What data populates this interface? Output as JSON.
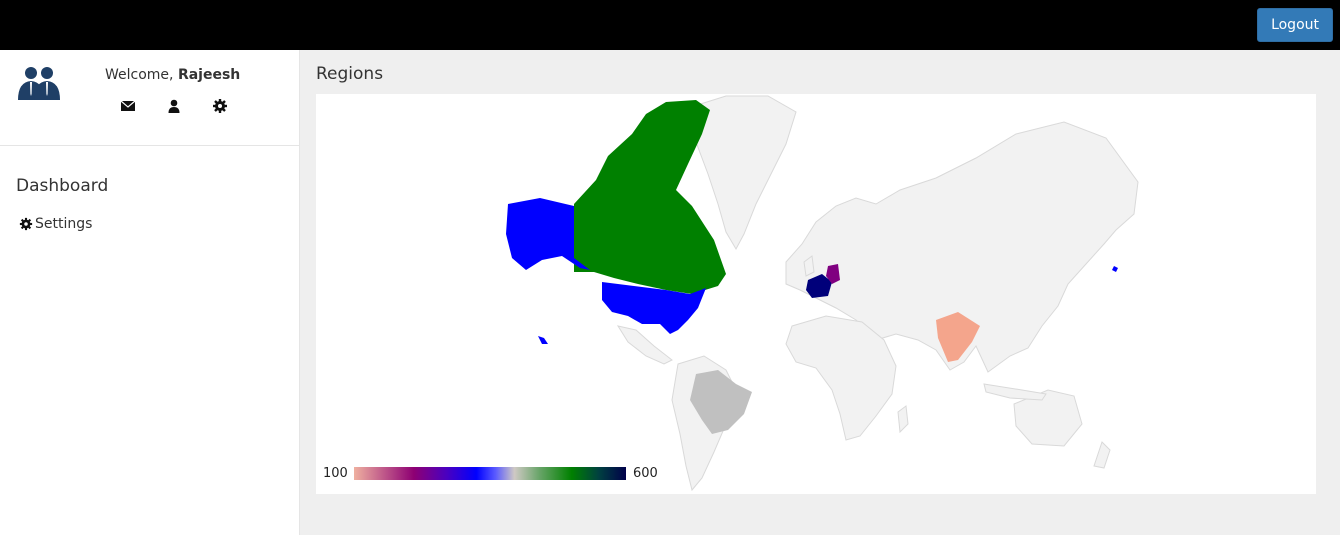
{
  "header": {
    "logout_label": "Logout"
  },
  "user": {
    "welcome_prefix": "Welcome,",
    "name": "Rajeesh"
  },
  "sidebar": {
    "icons": [
      "envelope-icon",
      "user-icon",
      "gear-icon"
    ],
    "nav_title": "Dashboard",
    "items": [
      {
        "label": "Settings",
        "icon": "gear-icon"
      }
    ]
  },
  "main": {
    "title": "Regions"
  },
  "map": {
    "legend": {
      "min": "100",
      "max": "600"
    },
    "colors": {
      "canada": "#008000",
      "usa": "#0000ff",
      "france": "#00007a",
      "germany": "#800080",
      "india": "#f4a58c",
      "brazil": "#c0c0c0",
      "japan": "#0000ff",
      "no_data": "#f2f2f2"
    }
  }
}
